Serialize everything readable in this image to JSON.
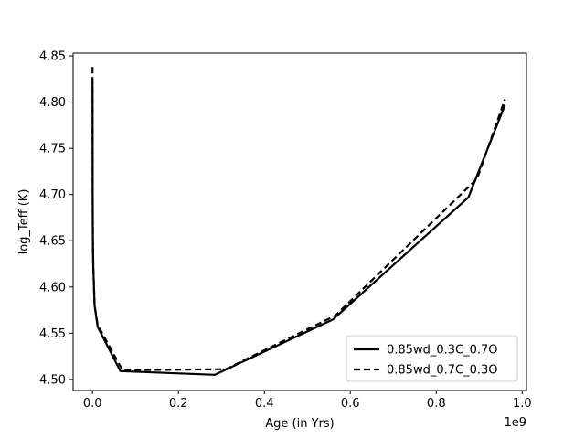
{
  "chart_data": {
    "type": "line",
    "xlabel": "Age (in Yrs)",
    "ylabel": "log_Teff (K)",
    "x_offset_label": "1e9",
    "x_tick_scale": 1000000000,
    "xlim": [
      -45000000,
      1010000000
    ],
    "ylim": [
      4.488,
      4.853
    ],
    "x_ticks": [
      0.0,
      200000000,
      400000000,
      600000000,
      800000000,
      1000000000
    ],
    "x_tick_labels": [
      "0.0",
      "0.2",
      "0.4",
      "0.6",
      "0.8",
      "1.0"
    ],
    "y_ticks": [
      4.5,
      4.55,
      4.6,
      4.65,
      4.7,
      4.75,
      4.8,
      4.85
    ],
    "y_tick_labels": [
      "4.50",
      "4.55",
      "4.60",
      "4.65",
      "4.70",
      "4.75",
      "4.80",
      "4.85"
    ],
    "grid": false,
    "legend_position": "bottom-right",
    "series": [
      {
        "name": "0.85wd_0.3C_0.7O",
        "color": "#000000",
        "dash": "solid",
        "x": [
          0,
          300000,
          600000,
          1000000,
          2000000,
          5000000,
          12000000,
          65000000,
          285000000,
          560000000,
          875000000,
          960000000
        ],
        "y": [
          4.822,
          4.78,
          4.7,
          4.65,
          4.62,
          4.58,
          4.557,
          4.509,
          4.505,
          4.565,
          4.697,
          4.797
        ]
      },
      {
        "name": "0.85wd_0.7C_0.3O",
        "color": "#000000",
        "dash": "dashed",
        "x": [
          0,
          300000,
          600000,
          1000000,
          2000000,
          5000000,
          12000000,
          70000000,
          310000000,
          565000000,
          895000000,
          960000000
        ],
        "y": [
          4.838,
          4.79,
          4.7,
          4.65,
          4.62,
          4.58,
          4.559,
          4.51,
          4.511,
          4.569,
          4.717,
          4.803
        ]
      }
    ]
  }
}
